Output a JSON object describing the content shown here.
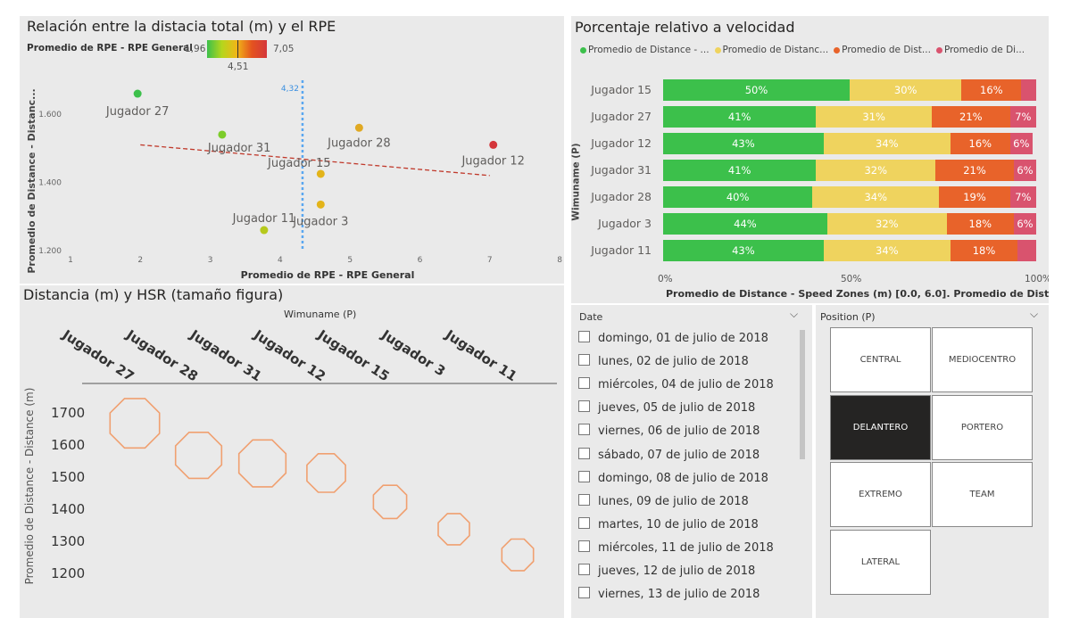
{
  "scatter": {
    "title": "Relación entre la distacia total (m) y el RPE",
    "legend_label": "Promedio de RPE - RPE General",
    "legend_min": "1,96",
    "legend_max": "7,05",
    "legend_mid": "4,51",
    "ref_line_label": "4,32",
    "xlabel": "Promedio de RPE - RPE General",
    "ylabel": "Promedio de Distance - Distanc...",
    "x_ticks": [
      "1",
      "2",
      "3",
      "4",
      "5",
      "6",
      "7",
      "8"
    ],
    "y_ticks": [
      "1.600",
      "1.400",
      "1.200"
    ],
    "points": [
      {
        "name": "Jugador 27",
        "rpe": 1.96,
        "distance": 1660,
        "color": "#3cc04b"
      },
      {
        "name": "Jugador 31",
        "rpe": 3.17,
        "distance": 1540,
        "color": "#7ccc2a"
      },
      {
        "name": "Jugador 28",
        "rpe": 5.13,
        "distance": 1560,
        "color": "#e0a923"
      },
      {
        "name": "Jugador 12",
        "rpe": 7.05,
        "distance": 1510,
        "color": "#d4363b"
      },
      {
        "name": "Jugador 15",
        "rpe": 4.58,
        "distance": 1425,
        "color": "#e3b41a"
      },
      {
        "name": "Jugador 3",
        "rpe": 4.58,
        "distance": 1335,
        "color": "#e3b41a"
      },
      {
        "name": "Jugador 11",
        "rpe": 3.77,
        "distance": 1260,
        "color": "#b6c91c"
      }
    ],
    "trend": {
      "x1": 2,
      "y1": 1510,
      "x2": 7,
      "y2": 1420
    }
  },
  "bars": {
    "title": "Porcentaje relativo a velocidad",
    "legend": [
      {
        "label": "Promedio de Distance - ...",
        "color": "#3cc04b"
      },
      {
        "label": "Promedio de Distanc...",
        "color": "#efd35e"
      },
      {
        "label": "Promedio de Dist...",
        "color": "#e8632a"
      },
      {
        "label": "Promedio de Di...",
        "color": "#d9536e"
      }
    ],
    "ylabel": "Wimuname (P)",
    "xlabel": "Promedio de Distance - Speed Zones (m) [0.0, 6.0]. Promedio de Dista...",
    "x_ticks": [
      "0%",
      "50%",
      "100%"
    ],
    "rows": [
      {
        "name": "Jugador 15",
        "values": [
          50,
          30,
          16,
          4
        ],
        "labels": [
          "50%",
          "30%",
          "16%",
          ""
        ]
      },
      {
        "name": "Jugador 27",
        "values": [
          41,
          31,
          21,
          7
        ],
        "labels": [
          "41%",
          "31%",
          "21%",
          "7%"
        ]
      },
      {
        "name": "Jugador 12",
        "values": [
          43,
          34,
          16,
          6
        ],
        "labels": [
          "43%",
          "34%",
          "16%",
          "6%"
        ]
      },
      {
        "name": "Jugador 31",
        "values": [
          41,
          32,
          21,
          6
        ],
        "labels": [
          "41%",
          "32%",
          "21%",
          "6%"
        ]
      },
      {
        "name": "Jugador 28",
        "values": [
          40,
          34,
          19,
          7
        ],
        "labels": [
          "40%",
          "34%",
          "19%",
          "7%"
        ]
      },
      {
        "name": "Jugador 3",
        "values": [
          44,
          32,
          18,
          6
        ],
        "labels": [
          "44%",
          "32%",
          "18%",
          "6%"
        ]
      },
      {
        "name": "Jugador 11",
        "values": [
          43,
          34,
          18,
          5
        ],
        "labels": [
          "43%",
          "34%",
          "18%",
          ""
        ]
      }
    ]
  },
  "oct": {
    "title": "Distancia (m) y HSR (tamaño figura)",
    "xlabel": "Wimuname (P)",
    "ylabel": "Promedio de Distance - Distance (m)",
    "y_ticks": [
      "1700",
      "1600",
      "1500",
      "1400",
      "1300",
      "1200"
    ],
    "players": [
      {
        "name": "Jugador 27",
        "distance": 1665,
        "size": 1.0
      },
      {
        "name": "Jugador 28",
        "distance": 1565,
        "size": 0.93
      },
      {
        "name": "Jugador 31",
        "distance": 1540,
        "size": 0.95
      },
      {
        "name": "Jugador 12",
        "distance": 1510,
        "size": 0.78
      },
      {
        "name": "Jugador 15",
        "distance": 1420,
        "size": 0.67
      },
      {
        "name": "Jugador 3",
        "distance": 1335,
        "size": 0.63
      },
      {
        "name": "Jugador 11",
        "distance": 1255,
        "size": 0.64
      }
    ]
  },
  "date_slicer": {
    "header": "Date",
    "items": [
      "domingo, 01 de julio de 2018",
      "lunes, 02 de julio de 2018",
      "miércoles, 04 de julio de 2018",
      "jueves, 05 de julio de 2018",
      "viernes, 06 de julio de 2018",
      "sábado, 07 de julio de 2018",
      "domingo, 08 de julio de 2018",
      "lunes, 09 de julio de 2018",
      "martes, 10 de julio de 2018",
      "miércoles, 11 de julio de 2018",
      "jueves, 12 de julio de 2018",
      "viernes, 13 de julio de 2018"
    ]
  },
  "position_slicer": {
    "header": "Position (P)",
    "tiles": [
      "CENTRAL",
      "MEDIOCENTRO",
      "DELANTERO",
      "PORTERO",
      "EXTREMO",
      "TEAM",
      "LATERAL"
    ],
    "selected": "DELANTERO"
  }
}
